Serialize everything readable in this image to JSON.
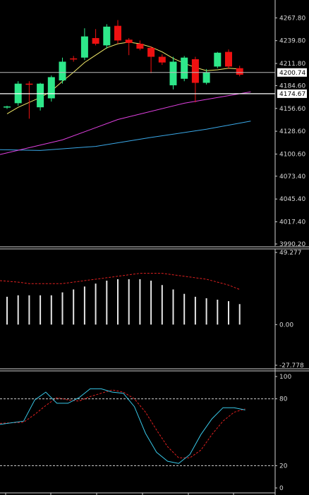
{
  "chart_data": [
    {
      "type": "candlestick",
      "panel": "price",
      "y_range": [
        3990.2,
        4275
      ],
      "y_ticks": [
        "4267.80",
        "4239.80",
        "4211.80",
        "4184.60",
        "4156.60",
        "4128.60",
        "4100.60",
        "4073.40",
        "4045.40",
        "4017.40",
        "3990.20"
      ],
      "current_price_label": "4200.74",
      "current_price": 4200.74,
      "horizontal_line_label": "4174.67",
      "horizontal_line": 4174.67,
      "colors": {
        "up": "#2ee88a",
        "down": "#ee1111",
        "ma_fast": "#f0e868",
        "ma_mid": "#e040e0",
        "ma_slow": "#3aa8e8",
        "line": "#ffffff"
      },
      "candles": [
        {
          "o": 4158.0,
          "h": 4160.0,
          "l": 4156.0,
          "c": 4159.0
        },
        {
          "o": 4163.0,
          "h": 4190.0,
          "l": 4160.0,
          "c": 4187.0
        },
        {
          "o": 4187.0,
          "h": 4190.0,
          "l": 4144.0,
          "c": 4186.0
        },
        {
          "o": 4158.0,
          "h": 4188.0,
          "l": 4154.0,
          "c": 4187.0
        },
        {
          "o": 4169.0,
          "h": 4197.0,
          "l": 4165.0,
          "c": 4195.0
        },
        {
          "o": 4191.0,
          "h": 4219.0,
          "l": 4187.0,
          "c": 4214.0
        },
        {
          "o": 4218.0,
          "h": 4221.0,
          "l": 4214.0,
          "c": 4217.0
        },
        {
          "o": 4219.0,
          "h": 4255.0,
          "l": 4216.0,
          "c": 4245.0
        },
        {
          "o": 4243.0,
          "h": 4254.0,
          "l": 4234.0,
          "c": 4236.0
        },
        {
          "o": 4234.0,
          "h": 4260.0,
          "l": 4230.0,
          "c": 4257.0
        },
        {
          "o": 4258.0,
          "h": 4265.0,
          "l": 4236.0,
          "c": 4240.0
        },
        {
          "o": 4241.0,
          "h": 4243.0,
          "l": 4222.0,
          "c": 4237.0
        },
        {
          "o": 4236.0,
          "h": 4240.0,
          "l": 4228.0,
          "c": 4230.0
        },
        {
          "o": 4231.0,
          "h": 4233.0,
          "l": 4200.0,
          "c": 4220.0
        },
        {
          "o": 4220.0,
          "h": 4223.0,
          "l": 4210.0,
          "c": 4213.0
        },
        {
          "o": 4185.0,
          "h": 4220.0,
          "l": 4180.0,
          "c": 4214.0
        },
        {
          "o": 4193.0,
          "h": 4221.0,
          "l": 4190.0,
          "c": 4219.0
        },
        {
          "o": 4217.0,
          "h": 4220.0,
          "l": 4164.0,
          "c": 4188.0
        },
        {
          "o": 4188.0,
          "h": 4205.0,
          "l": 4186.0,
          "c": 4201.0
        },
        {
          "o": 4208.0,
          "h": 4226.0,
          "l": 4206.0,
          "c": 4225.0
        },
        {
          "o": 4226.0,
          "h": 4229.0,
          "l": 4205.0,
          "c": 4208.0
        },
        {
          "o": 4206.0,
          "h": 4209.0,
          "l": 4196.0,
          "c": 4198.0
        }
      ],
      "ma_fast": [
        4150,
        4158,
        4164,
        4170,
        4178,
        4190,
        4201,
        4213,
        4222,
        4231,
        4236,
        4238,
        4236,
        4232,
        4226,
        4218,
        4212,
        4207,
        4203,
        4204,
        4206,
        4205
      ],
      "ma_mid_x": [
        0,
        5,
        10,
        16,
        22
      ],
      "ma_mid": [
        4100,
        4118,
        4143,
        4163,
        4177
      ],
      "ma_slow_x": [
        0,
        3,
        8,
        13,
        18,
        22
      ],
      "ma_slow": [
        4106,
        4105,
        4110,
        4121,
        4131,
        4141
      ]
    },
    {
      "type": "histogram",
      "panel": "oscillator",
      "y_range": [
        -27.778,
        49.277
      ],
      "y_ticks": [
        "49.277",
        "0.00",
        "-27.778"
      ],
      "bars": [
        19,
        20,
        20,
        20,
        20,
        22,
        24,
        26,
        28,
        30,
        31,
        31,
        31,
        30,
        27,
        24,
        21,
        19,
        18,
        17,
        16,
        14
      ],
      "signal": [
        30,
        29,
        28,
        28,
        28,
        28,
        29,
        30,
        31,
        32,
        33,
        34,
        35,
        35,
        35,
        34,
        33,
        32,
        31,
        29,
        27,
        24
      ]
    },
    {
      "type": "line",
      "panel": "stochastic",
      "y_range": [
        0,
        100
      ],
      "y_ticks": [
        "100",
        "80",
        "20",
        "0"
      ],
      "levels": [
        80,
        20
      ],
      "k_x": [
        0,
        1.5,
        2.5,
        3.5,
        4.5,
        5.5,
        6.5,
        7.5,
        8.5,
        9.5,
        10.5,
        11.5,
        12.5,
        13.5,
        14.5,
        15.5,
        16.5,
        17.5,
        18.5,
        19.5,
        20.5,
        21.5
      ],
      "k": [
        57,
        60,
        79,
        86,
        76,
        76,
        81,
        89,
        89,
        86,
        85,
        73,
        49,
        32,
        24,
        22,
        30,
        48,
        62,
        72,
        72,
        70
      ],
      "d_x": [
        0,
        1.5,
        2.5,
        3.5,
        4.5,
        5.5,
        6.5,
        7.5,
        8.5,
        9.5,
        10.5,
        11.5,
        12.5,
        13.5,
        14.5,
        15.5,
        16.5,
        17.5,
        18.5,
        19.5,
        20.5,
        21.5
      ],
      "d": [
        58,
        59,
        66,
        74,
        81,
        79,
        78,
        82,
        85,
        88,
        86,
        80,
        68,
        52,
        37,
        27,
        27,
        34,
        48,
        60,
        68,
        71
      ]
    }
  ]
}
